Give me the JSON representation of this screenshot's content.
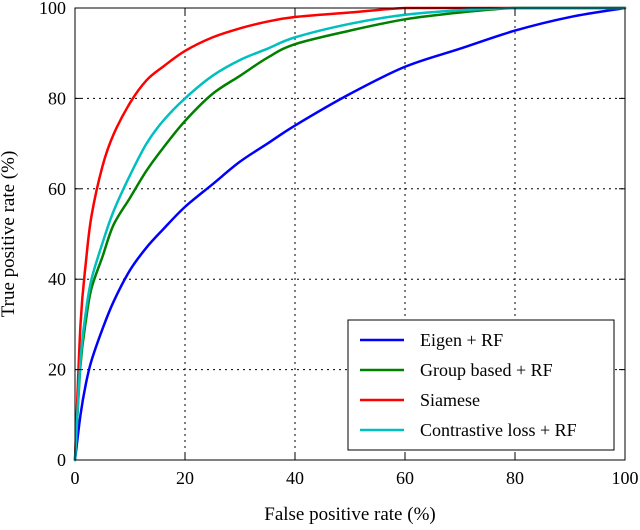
{
  "chart_data": {
    "type": "line",
    "title": "",
    "xlabel": "False positive rate (%)",
    "ylabel": "True positive rate (%)",
    "xlim": [
      0,
      100
    ],
    "ylim": [
      0,
      100
    ],
    "xticks": [
      0,
      20,
      40,
      60,
      80,
      100
    ],
    "yticks": [
      0,
      20,
      40,
      60,
      80,
      100
    ],
    "grid": true,
    "grid_style": "dotted",
    "legend_position": "lower-right",
    "series": [
      {
        "name": "Eigen + RF",
        "color": "#0000ff",
        "x": [
          0,
          1,
          2,
          3,
          5,
          7,
          10,
          13,
          16,
          20,
          25,
          30,
          35,
          40,
          50,
          60,
          70,
          80,
          90,
          100
        ],
        "y": [
          0,
          10,
          17,
          22,
          29,
          35,
          42,
          47,
          51,
          56,
          61,
          66,
          70,
          74,
          81,
          87,
          91,
          95,
          98,
          100
        ]
      },
      {
        "name": "Group based + RF",
        "color": "#008000",
        "x": [
          0,
          1,
          2,
          3,
          5,
          7,
          10,
          13,
          16,
          20,
          25,
          30,
          35,
          40,
          50,
          60,
          70,
          80,
          90,
          100
        ],
        "y": [
          0,
          21,
          31,
          38,
          45,
          52,
          58,
          64,
          69,
          75,
          81,
          85,
          89,
          92,
          95,
          97.5,
          99,
          100,
          100,
          100
        ]
      },
      {
        "name": "Siamese",
        "color": "#ff0000",
        "x": [
          0,
          1,
          2,
          3,
          5,
          7,
          10,
          13,
          16,
          20,
          25,
          30,
          35,
          40,
          50,
          60,
          70,
          80,
          90,
          100
        ],
        "y": [
          0,
          30,
          44,
          54,
          65,
          72,
          79,
          84,
          87,
          90.5,
          93.5,
          95.5,
          97,
          98,
          99,
          100,
          100,
          100,
          100,
          100
        ]
      },
      {
        "name": "Contrastive loss + RF",
        "color": "#00bfbf",
        "x": [
          0,
          1,
          2,
          3,
          5,
          7,
          10,
          13,
          16,
          20,
          25,
          30,
          35,
          40,
          50,
          60,
          70,
          80,
          90,
          100
        ],
        "y": [
          0,
          22,
          33,
          40,
          48,
          55,
          63,
          70,
          75,
          80,
          85,
          88.5,
          91,
          93.5,
          96.5,
          98.5,
          99.5,
          100,
          100,
          100
        ]
      }
    ]
  }
}
